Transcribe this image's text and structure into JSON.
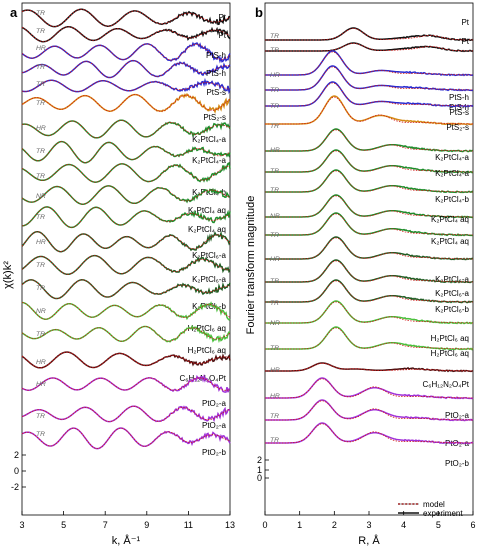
{
  "figure": {
    "panel_a_letter": "a",
    "panel_b_letter": "b",
    "legend": {
      "model": "model",
      "experiment": "experiment"
    },
    "colors": {
      "Pt": "#111111",
      "PtS": "#2a2ad0",
      "PtS2": "#d48a14",
      "K2PtCl": "#1e8c2a",
      "H2PtCl": "#4ac03c",
      "C6": "#4a1010",
      "PtO2": "#a030d8",
      "model": "#d01818",
      "frame": "#000000"
    }
  },
  "chart_data": [
    {
      "type": "line",
      "panel": "a",
      "xlabel": "k, Å⁻¹",
      "ylabel": "χ(k)k²",
      "xlim": [
        3,
        13
      ],
      "xticks": [
        "3",
        "5",
        "7",
        "9",
        "11",
        "13"
      ],
      "yticks": [
        "2",
        "0",
        "-2"
      ],
      "series": [
        {
          "name": "Pt",
          "tag": "TR",
          "color": "#111111"
        },
        {
          "name": "Pt",
          "tag": "TR",
          "color": "#111111"
        },
        {
          "name": "PtS-h",
          "tag": "HR",
          "color": "#2a2ad0"
        },
        {
          "name": "PtS-h",
          "tag": "TR",
          "color": "#2a2ad0"
        },
        {
          "name": "PtS-s",
          "tag": "TR",
          "color": "#2a2ad0"
        },
        {
          "name": "PtS₂-s",
          "tag": "TR",
          "color": "#d48a14"
        },
        {
          "name": "K₂PtCl₄-a",
          "tag": "HR",
          "color": "#1e8c2a"
        },
        {
          "name": "K₂PtCl₄-a",
          "tag": "TR",
          "color": "#1e8c2a"
        },
        {
          "name": "K₂PtCl₄-b",
          "tag": "TR",
          "color": "#1e8c2a"
        },
        {
          "name": "K₂PtCl₄ aq",
          "tag": "NR",
          "color": "#1e8c2a"
        },
        {
          "name": "K₂PtCl₄ aq",
          "tag": "TR",
          "color": "#1e8c2a"
        },
        {
          "name": "K₂PtCl₆-a",
          "tag": "HR",
          "color": "#1f5c22"
        },
        {
          "name": "K₂PtCl₆-a",
          "tag": "TR",
          "color": "#1f5c22"
        },
        {
          "name": "K₂PtCl₆-b",
          "tag": "TR",
          "color": "#1f5c22"
        },
        {
          "name": "H₂PtCl₆ aq",
          "tag": "NR",
          "color": "#4ac03c"
        },
        {
          "name": "H₂PtCl₆ aq",
          "tag": "TR",
          "color": "#4ac03c"
        },
        {
          "name": "C₆H₁₂N₂O₄Pt",
          "tag": "HR",
          "color": "#4a1010"
        },
        {
          "name": "PtO₂-a",
          "tag": "HR",
          "color": "#a030d8"
        },
        {
          "name": "PtO₂-a",
          "tag": "TR",
          "color": "#a030d8"
        },
        {
          "name": "PtO₂-b",
          "tag": "TR",
          "color": "#a030d8"
        }
      ]
    },
    {
      "type": "line",
      "panel": "b",
      "xlabel": "R, Å",
      "ylabel": "Fourier transform magnitude",
      "xlim": [
        0,
        6
      ],
      "xticks": [
        "0",
        "1",
        "2",
        "3",
        "4",
        "5",
        "6"
      ],
      "yticks": [
        "2",
        "1",
        "0"
      ],
      "series": [
        {
          "name": "Pt",
          "tag": "TR",
          "color": "#111111"
        },
        {
          "name": "Pt",
          "tag": "TR",
          "color": "#111111"
        },
        {
          "name": "PtS-h",
          "tag": "HR",
          "color": "#2a2ad0"
        },
        {
          "name": "PtS-h",
          "tag": "TR",
          "color": "#2a2ad0"
        },
        {
          "name": "PtS-s",
          "tag": "TR",
          "color": "#2a2ad0"
        },
        {
          "name": "PtS₂-s",
          "tag": "TR",
          "color": "#d48a14"
        },
        {
          "name": "K₂PtCl₄-a",
          "tag": "HR",
          "color": "#1e8c2a"
        },
        {
          "name": "K₂PtCl₄-a",
          "tag": "TR",
          "color": "#1e8c2a"
        },
        {
          "name": "K₂PtCl₄-b",
          "tag": "TR",
          "color": "#1e8c2a"
        },
        {
          "name": "K₂PtCl₄ aq",
          "tag": "NR",
          "color": "#1e8c2a"
        },
        {
          "name": "K₂PtCl₄ aq",
          "tag": "TR",
          "color": "#1e8c2a"
        },
        {
          "name": "K₂PtCl₆-a",
          "tag": "HR",
          "color": "#1f5c22"
        },
        {
          "name": "K₂PtCl₆-a",
          "tag": "TR",
          "color": "#1f5c22"
        },
        {
          "name": "K₂PtCl₆-b",
          "tag": "TR",
          "color": "#1f5c22"
        },
        {
          "name": "H₂PtCl₆ aq",
          "tag": "NR",
          "color": "#4ac03c"
        },
        {
          "name": "H₂PtCl₆ aq",
          "tag": "TR",
          "color": "#4ac03c"
        },
        {
          "name": "C₆H₁₂N₂O₄Pt",
          "tag": "HR",
          "color": "#4a1010"
        },
        {
          "name": "PtO₂-a",
          "tag": "HR",
          "color": "#a030d8"
        },
        {
          "name": "PtO₂-a",
          "tag": "TR",
          "color": "#a030d8"
        },
        {
          "name": "PtO₂-b",
          "tag": "TR",
          "color": "#a030d8"
        }
      ]
    }
  ]
}
